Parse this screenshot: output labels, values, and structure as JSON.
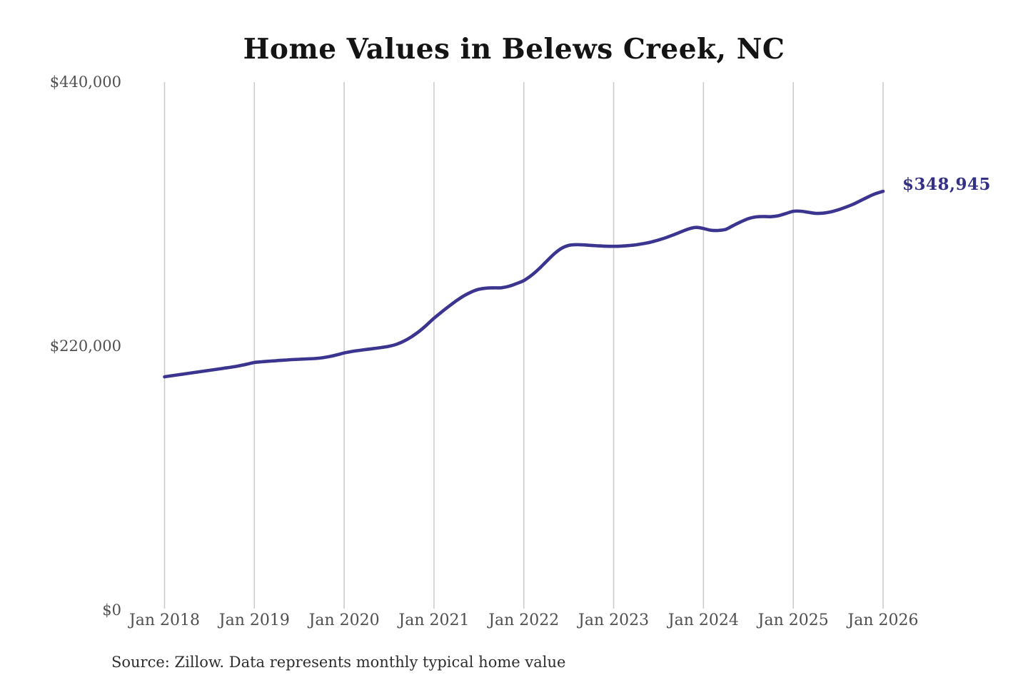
{
  "header": {
    "title": "Home Values in Belews Creek, NC"
  },
  "source_note": "Source: Zillow. Data represents monthly typical home value",
  "chart_data": {
    "type": "line",
    "title": "Home Values in Belews Creek, NC",
    "xlabel": "",
    "ylabel": "",
    "ylim": [
      0,
      440000
    ],
    "grid": "vertical-only",
    "legend": "none",
    "frequency": "monthly",
    "x_start": "Jan 2018",
    "x_end": "Jan 2026",
    "end_label": "$348,945",
    "final_value": 348945,
    "line_color": "#3c3590",
    "end_label_color": "#333086",
    "gridline_color": "#cccccc",
    "axis_text_color": "#4f4f4f",
    "y_ticks": [
      {
        "label": "$440,000",
        "value": 440000
      },
      {
        "label": "$220,000",
        "value": 220000
      },
      {
        "label": "$0",
        "value": 0
      }
    ],
    "x_tick_labels": [
      "Jan 2018",
      "Jan 2019",
      "Jan 2020",
      "Jan 2021",
      "Jan 2022",
      "Jan 2023",
      "Jan 2024",
      "Jan 2025",
      "Jan 2026"
    ],
    "values": [
      194400,
      195300,
      196200,
      197100,
      198000,
      198900,
      199800,
      200700,
      201600,
      202500,
      203600,
      204900,
      206300,
      206900,
      207400,
      207900,
      208300,
      208700,
      209000,
      209300,
      209600,
      210200,
      211200,
      212600,
      214300,
      215500,
      216400,
      217200,
      218000,
      218800,
      219800,
      221500,
      224200,
      227800,
      232200,
      237500,
      243200,
      248300,
      253200,
      257800,
      261900,
      265100,
      267300,
      268300,
      268500,
      268600,
      269800,
      272000,
      274600,
      278800,
      284200,
      290400,
      296500,
      301300,
      303900,
      304500,
      304300,
      303900,
      303500,
      303200,
      303100,
      303300,
      303700,
      304400,
      305400,
      306700,
      308400,
      310400,
      312700,
      315200,
      317600,
      318900,
      318000,
      316500,
      316400,
      317300,
      320500,
      323500,
      326200,
      327600,
      328000,
      327800,
      328600,
      330400,
      332300,
      332400,
      331500,
      330600,
      330800,
      331800,
      333500,
      335700,
      338200,
      341200,
      344300,
      347000,
      348945
    ]
  }
}
